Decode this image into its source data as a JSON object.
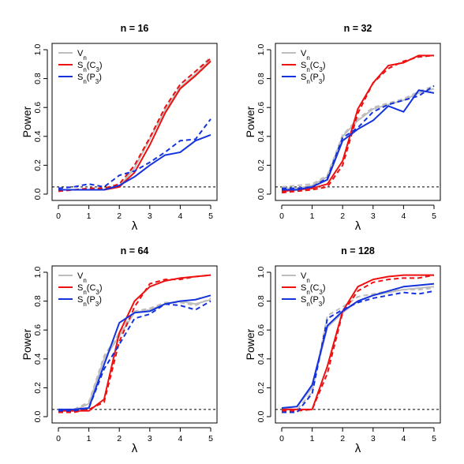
{
  "chart_data": [
    {
      "type": "line",
      "title": "n = 16",
      "xlabel": "λ",
      "ylabel": "Power",
      "xlim": [
        0,
        5
      ],
      "ylim": [
        0,
        1
      ],
      "x_ticks": [
        "0",
        "1",
        "2",
        "3",
        "4",
        "5"
      ],
      "y_ticks": [
        "0.0",
        "0.2",
        "0.4",
        "0.6",
        "0.8",
        "1.0"
      ],
      "x": [
        0,
        0.5,
        1,
        1.5,
        2,
        2.5,
        3,
        3.5,
        4,
        4.5,
        5
      ],
      "reference_line": 0.05,
      "legend_position": "top-left",
      "series": [
        {
          "name": "Vn",
          "color": "#bdbdbd",
          "style": "solid",
          "values": [
            0.03,
            0.03,
            0.03,
            0.03,
            0.05,
            0.18,
            0.38,
            0.58,
            0.74,
            0.83,
            0.93
          ]
        },
        {
          "color": "#bdbdbd",
          "style": "dashed",
          "values": [
            0.02,
            0.03,
            0.04,
            0.04,
            0.06,
            0.2,
            0.39,
            0.6,
            0.76,
            0.85,
            0.95
          ]
        },
        {
          "name": "Sn(C3)",
          "color": "#ee1111",
          "style": "solid",
          "values": [
            0.03,
            0.03,
            0.03,
            0.03,
            0.05,
            0.15,
            0.34,
            0.56,
            0.73,
            0.82,
            0.92
          ]
        },
        {
          "color": "#ee1111",
          "style": "dashed",
          "values": [
            0.02,
            0.03,
            0.04,
            0.04,
            0.07,
            0.2,
            0.39,
            0.6,
            0.76,
            0.85,
            0.94
          ]
        },
        {
          "name": "Sn(P3)",
          "color": "#1533dd",
          "style": "solid",
          "values": [
            0.03,
            0.03,
            0.03,
            0.03,
            0.06,
            0.12,
            0.2,
            0.27,
            0.29,
            0.37,
            0.41
          ]
        },
        {
          "color": "#1533dd",
          "style": "dashed",
          "values": [
            0.04,
            0.05,
            0.07,
            0.05,
            0.13,
            0.16,
            0.22,
            0.29,
            0.37,
            0.38,
            0.52
          ]
        }
      ]
    },
    {
      "type": "line",
      "title": "n = 32",
      "xlabel": "λ",
      "ylabel": "Power",
      "xlim": [
        0,
        5
      ],
      "ylim": [
        0,
        1
      ],
      "x_ticks": [
        "0",
        "1",
        "2",
        "3",
        "4",
        "5"
      ],
      "y_ticks": [
        "0.0",
        "0.2",
        "0.4",
        "0.6",
        "0.8",
        "1.0"
      ],
      "x": [
        0,
        0.5,
        1,
        1.5,
        2,
        2.5,
        3,
        3.5,
        4,
        4.5,
        5
      ],
      "reference_line": 0.05,
      "legend_position": "top-left",
      "series": [
        {
          "name": "Vn",
          "color": "#bdbdbd",
          "style": "solid",
          "values": [
            0.04,
            0.04,
            0.06,
            0.12,
            0.4,
            0.51,
            0.59,
            0.62,
            0.65,
            0.7,
            0.73
          ]
        },
        {
          "color": "#bdbdbd",
          "style": "dashed",
          "values": [
            0.05,
            0.06,
            0.07,
            0.13,
            0.41,
            0.52,
            0.6,
            0.63,
            0.66,
            0.71,
            0.75
          ]
        },
        {
          "name": "Sn(C3)",
          "color": "#ee1111",
          "style": "solid",
          "values": [
            0.02,
            0.03,
            0.04,
            0.07,
            0.23,
            0.59,
            0.77,
            0.89,
            0.91,
            0.96,
            0.96
          ]
        },
        {
          "color": "#ee1111",
          "style": "dashed",
          "values": [
            0.01,
            0.02,
            0.03,
            0.05,
            0.2,
            0.56,
            0.77,
            0.87,
            0.92,
            0.95,
            0.96
          ]
        },
        {
          "name": "Sn(P3)",
          "color": "#1533dd",
          "style": "solid",
          "values": [
            0.03,
            0.03,
            0.05,
            0.1,
            0.37,
            0.45,
            0.51,
            0.61,
            0.57,
            0.72,
            0.7
          ]
        },
        {
          "color": "#1533dd",
          "style": "dashed",
          "values": [
            0.04,
            0.04,
            0.05,
            0.11,
            0.39,
            0.46,
            0.57,
            0.62,
            0.65,
            0.68,
            0.75
          ]
        }
      ]
    },
    {
      "type": "line",
      "title": "n = 64",
      "xlabel": "λ",
      "ylabel": "Power",
      "xlim": [
        0,
        5
      ],
      "ylim": [
        0,
        1
      ],
      "x_ticks": [
        "0",
        "1",
        "2",
        "3",
        "4",
        "5"
      ],
      "y_ticks": [
        "0.0",
        "0.2",
        "0.4",
        "0.6",
        "0.8",
        "1.0"
      ],
      "x": [
        0,
        0.5,
        1,
        1.5,
        2,
        2.5,
        3,
        3.5,
        4,
        4.5,
        5
      ],
      "reference_line": 0.05,
      "legend_position": "top-left",
      "series": [
        {
          "name": "Vn",
          "color": "#bdbdbd",
          "style": "solid",
          "values": [
            0.04,
            0.04,
            0.09,
            0.4,
            0.56,
            0.72,
            0.74,
            0.78,
            0.8,
            0.78,
            0.81
          ]
        },
        {
          "color": "#bdbdbd",
          "style": "dashed",
          "values": [
            0.05,
            0.05,
            0.1,
            0.42,
            0.58,
            0.73,
            0.75,
            0.79,
            0.79,
            0.77,
            0.82
          ]
        },
        {
          "name": "Sn(C3)",
          "color": "#ee1111",
          "style": "solid",
          "values": [
            0.04,
            0.04,
            0.04,
            0.12,
            0.58,
            0.8,
            0.9,
            0.94,
            0.96,
            0.97,
            0.98
          ]
        },
        {
          "color": "#ee1111",
          "style": "dashed",
          "values": [
            0.03,
            0.03,
            0.05,
            0.1,
            0.52,
            0.76,
            0.92,
            0.95,
            0.95,
            0.97,
            0.98
          ]
        },
        {
          "name": "Sn(P3)",
          "color": "#1533dd",
          "style": "solid",
          "values": [
            0.05,
            0.05,
            0.06,
            0.36,
            0.65,
            0.72,
            0.73,
            0.78,
            0.8,
            0.81,
            0.84
          ]
        },
        {
          "color": "#1533dd",
          "style": "dashed",
          "values": [
            0.04,
            0.04,
            0.06,
            0.33,
            0.5,
            0.68,
            0.71,
            0.78,
            0.77,
            0.74,
            0.8
          ]
        }
      ]
    },
    {
      "type": "line",
      "title": "n = 128",
      "xlabel": "λ",
      "ylabel": "Power",
      "xlim": [
        0,
        5
      ],
      "ylim": [
        0,
        1
      ],
      "x_ticks": [
        "0",
        "1",
        "2",
        "3",
        "4",
        "5"
      ],
      "y_ticks": [
        "0.0",
        "0.2",
        "0.4",
        "0.6",
        "0.8",
        "1.0"
      ],
      "x": [
        0,
        0.5,
        1,
        1.5,
        2,
        2.5,
        3,
        3.5,
        4,
        4.5,
        5
      ],
      "reference_line": 0.05,
      "legend_position": "top-left",
      "series": [
        {
          "name": "Vn",
          "color": "#bdbdbd",
          "style": "solid",
          "values": [
            0.05,
            0.07,
            0.2,
            0.62,
            0.72,
            0.8,
            0.84,
            0.86,
            0.88,
            0.89,
            0.9
          ]
        },
        {
          "color": "#bdbdbd",
          "style": "dashed",
          "values": [
            0.04,
            0.05,
            0.17,
            0.7,
            0.76,
            0.83,
            0.85,
            0.87,
            0.88,
            0.88,
            0.89
          ]
        },
        {
          "name": "Sn(C3)",
          "color": "#ee1111",
          "style": "solid",
          "values": [
            0.05,
            0.05,
            0.05,
            0.35,
            0.73,
            0.9,
            0.95,
            0.97,
            0.98,
            0.98,
            0.98
          ]
        },
        {
          "color": "#ee1111",
          "style": "dashed",
          "values": [
            0.04,
            0.04,
            0.05,
            0.3,
            0.72,
            0.87,
            0.93,
            0.95,
            0.96,
            0.96,
            0.98
          ]
        },
        {
          "name": "Sn(P3)",
          "color": "#1533dd",
          "style": "solid",
          "values": [
            0.06,
            0.07,
            0.22,
            0.63,
            0.73,
            0.8,
            0.84,
            0.87,
            0.9,
            0.91,
            0.92
          ]
        },
        {
          "color": "#1533dd",
          "style": "dashed",
          "values": [
            0.03,
            0.03,
            0.16,
            0.68,
            0.74,
            0.79,
            0.82,
            0.84,
            0.86,
            0.85,
            0.87
          ]
        }
      ]
    }
  ]
}
